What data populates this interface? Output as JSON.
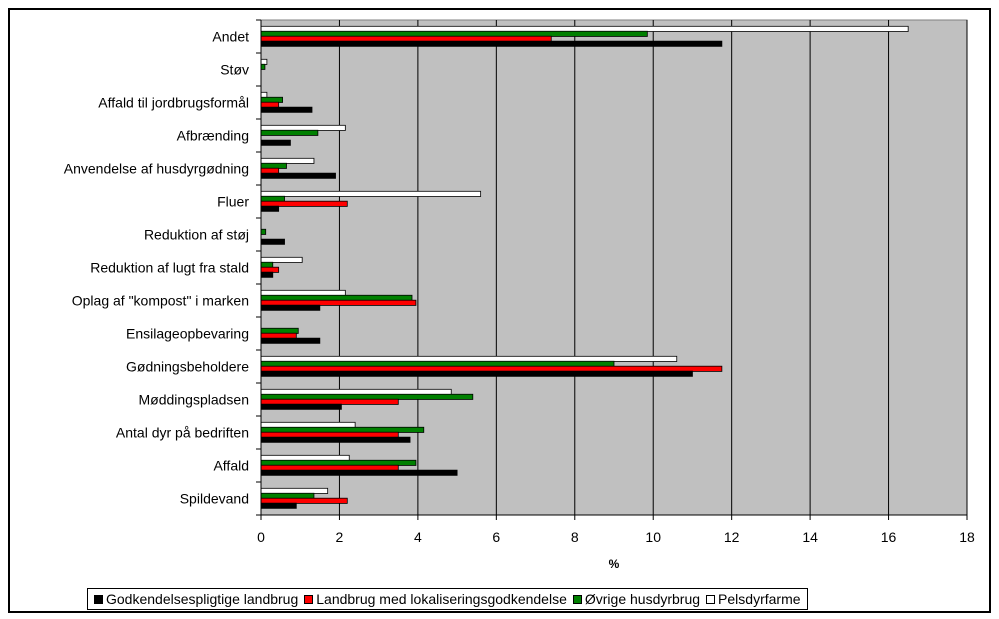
{
  "chart_data": {
    "type": "bar",
    "orientation": "horizontal",
    "categories": [
      "Andet",
      "Støv",
      "Affald til jordbrugsformål",
      "Afbrænding",
      "Anvendelse af husdyrgødning",
      "Fluer",
      "Reduktion af støj",
      "Reduktion af lugt fra stald",
      "Oplag af \"kompost\" i marken",
      "Ensilageopbevaring",
      "Gødningsbeholdere",
      "Møddingspladsen",
      "Antal dyr på bedriften",
      "Affald",
      "Spildevand"
    ],
    "series": [
      {
        "name": "Godkendelsespligtige landbrug",
        "color": "#000000",
        "values": [
          11.75,
          0,
          1.3,
          0.75,
          1.9,
          0.45,
          0.6,
          0.3,
          1.5,
          1.5,
          11.0,
          2.05,
          3.8,
          5.0,
          0.9
        ]
      },
      {
        "name": "Landbrug med lokaliseringsgodkendelse",
        "color": "#ff0000",
        "values": [
          7.4,
          0,
          0.45,
          0,
          0.45,
          2.2,
          0,
          0.45,
          3.95,
          0.9,
          11.75,
          3.5,
          3.5,
          3.5,
          2.2
        ]
      },
      {
        "name": "Øvrige husdyrbrug",
        "color": "#008000",
        "values": [
          9.85,
          0.1,
          0.55,
          1.45,
          0.65,
          0.6,
          0.12,
          0.3,
          3.85,
          0.95,
          9.0,
          5.4,
          4.15,
          3.95,
          1.35
        ]
      },
      {
        "name": "Pelsdyrfarme",
        "color": "#ffffff",
        "values": [
          16.5,
          0.15,
          0.15,
          2.15,
          1.35,
          5.6,
          0,
          1.05,
          2.15,
          0,
          10.6,
          4.85,
          2.4,
          2.25,
          1.7
        ]
      }
    ],
    "xlim": [
      0,
      18
    ],
    "xticks": [
      "0",
      "2",
      "4",
      "6",
      "8",
      "10",
      "12",
      "14",
      "16",
      "18"
    ],
    "xlabel": "%",
    "ylabel": "",
    "title": "",
    "grid": "vertical",
    "plot_background": "#c0c0c0",
    "legend_position": "bottom"
  }
}
